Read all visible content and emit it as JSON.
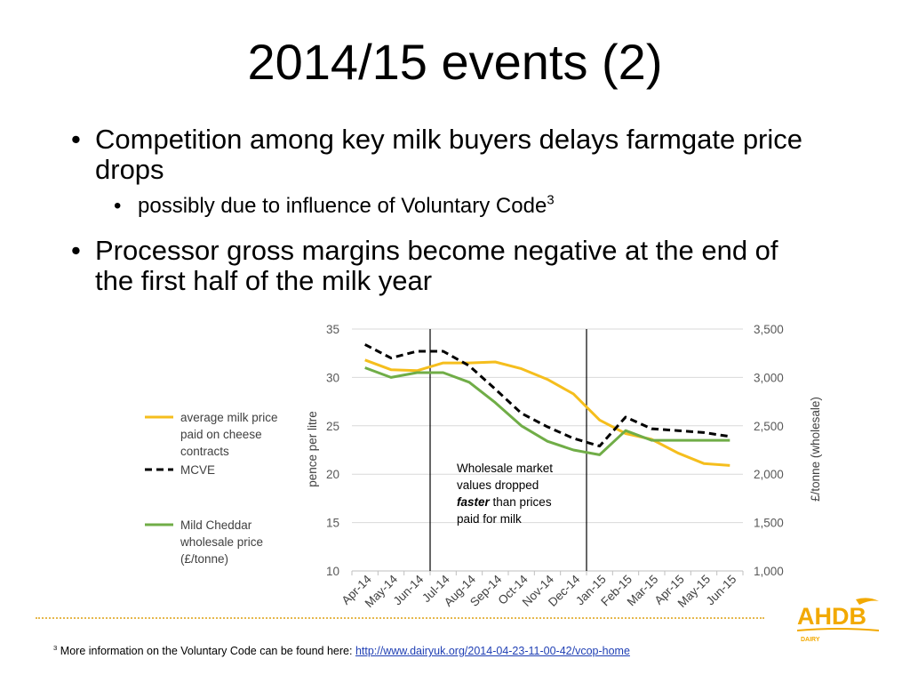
{
  "slide": {
    "title": "2014/15 events (2)",
    "bullets": [
      {
        "text": "Competition among key milk buyers delays farmgate price drops"
      },
      {
        "text": "Processor gross margins become negative at the end of the first half of the milk year"
      }
    ],
    "sub_bullet": {
      "text": "possibly due to influence of Voluntary Code",
      "sup": "3"
    },
    "footnote": {
      "sup": "3",
      "text": " More information on the Voluntary Code can be found here: ",
      "link": "http://www.dairyuk.org/2014-04-23-11-00-42/vcop-home"
    },
    "logo": {
      "text": "AHDB",
      "subtext": "DAIRY",
      "color": "#f2a900"
    }
  },
  "chart_data": {
    "type": "line",
    "categories": [
      "Apr-14",
      "May-14",
      "Jun-14",
      "Jul-14",
      "Aug-14",
      "Sep-14",
      "Oct-14",
      "Nov-14",
      "Dec-14",
      "Jan-15",
      "Feb-15",
      "Mar-15",
      "Apr-15",
      "May-15",
      "Jun-15"
    ],
    "ylabel": "pence per litre",
    "ylabel_right": "£/tonne (wholesale)",
    "ylim": [
      10,
      35
    ],
    "yticks": [
      "10",
      "15",
      "20",
      "25",
      "30",
      "35"
    ],
    "ylim_right": [
      1000,
      3500
    ],
    "yticks_right": [
      "1,000",
      "1,500",
      "2,000",
      "2,500",
      "3,000",
      "3,500"
    ],
    "grid": "horizontal",
    "legend_position": "left",
    "series": [
      {
        "name": "average milk price paid on cheese contracts",
        "legend_lines": [
          "average milk price",
          "paid on cheese",
          "contracts"
        ],
        "axis": "left",
        "color": "#f5be1d",
        "style": "solid",
        "values": [
          31.8,
          30.8,
          30.7,
          31.5,
          31.5,
          31.6,
          30.9,
          29.8,
          28.3,
          25.6,
          24.2,
          23.6,
          22.2,
          21.1,
          20.9
        ]
      },
      {
        "name": "MCVE",
        "legend_lines": [
          "MCVE"
        ],
        "axis": "right",
        "color": "#000000",
        "style": "dashed",
        "values": [
          3340,
          3200,
          3270,
          3270,
          3120,
          2880,
          2630,
          2490,
          2370,
          2290,
          2590,
          2470,
          2450,
          2430,
          2390
        ]
      },
      {
        "name": "Mild Cheddar wholesale price (£/tonne)",
        "legend_lines": [
          "Mild Cheddar",
          "wholesale price",
          "(£/tonne)"
        ],
        "axis": "right",
        "color": "#70ad47",
        "style": "solid",
        "values": [
          3100,
          3000,
          3050,
          3050,
          2950,
          2740,
          2500,
          2340,
          2250,
          2200,
          2450,
          2350,
          2350,
          2350,
          2350
        ]
      }
    ],
    "vlines_after_category": [
      2,
      8
    ],
    "annotation": {
      "line1": "Wholesale market",
      "line2": "values dropped",
      "line3_bold": "faster",
      "line3_rest": " than prices",
      "line4": "paid for milk"
    }
  }
}
